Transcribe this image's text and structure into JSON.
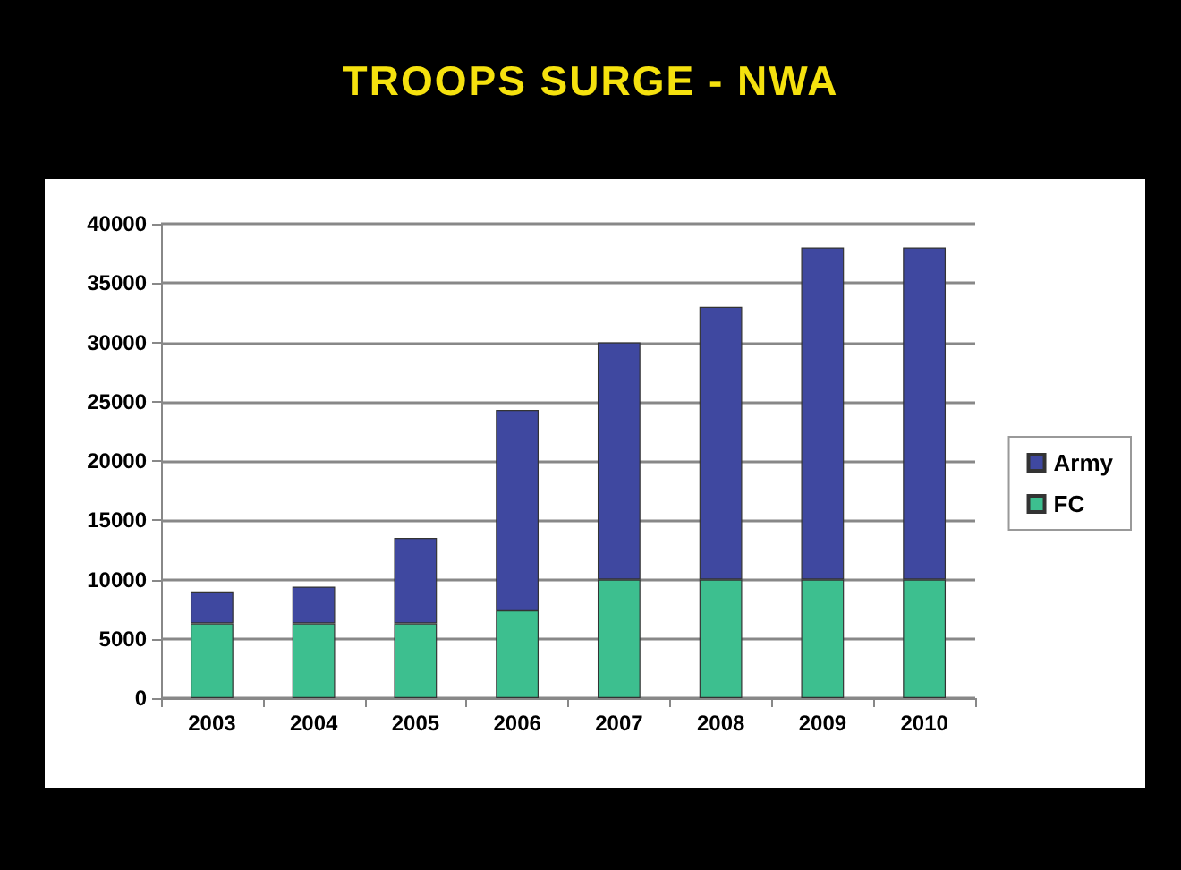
{
  "chart_data": {
    "type": "bar",
    "title": "TROOPS SURGE - NWA",
    "stacked": true,
    "categories": [
      "2003",
      "2004",
      "2005",
      "2006",
      "2007",
      "2008",
      "2009",
      "2010"
    ],
    "series": [
      {
        "name": "FC",
        "color": "#3dbf8f",
        "values": [
          6300,
          6300,
          6300,
          7400,
          10000,
          10000,
          10000,
          10000
        ]
      },
      {
        "name": "Army",
        "color": "#3f48a0",
        "values": [
          2700,
          3100,
          7200,
          16900,
          20000,
          23000,
          28000,
          28000
        ]
      }
    ],
    "ylim": [
      0,
      40000
    ],
    "yticks": [
      0,
      5000,
      10000,
      15000,
      20000,
      25000,
      30000,
      35000,
      40000
    ],
    "grid": "y",
    "legend": "right"
  }
}
